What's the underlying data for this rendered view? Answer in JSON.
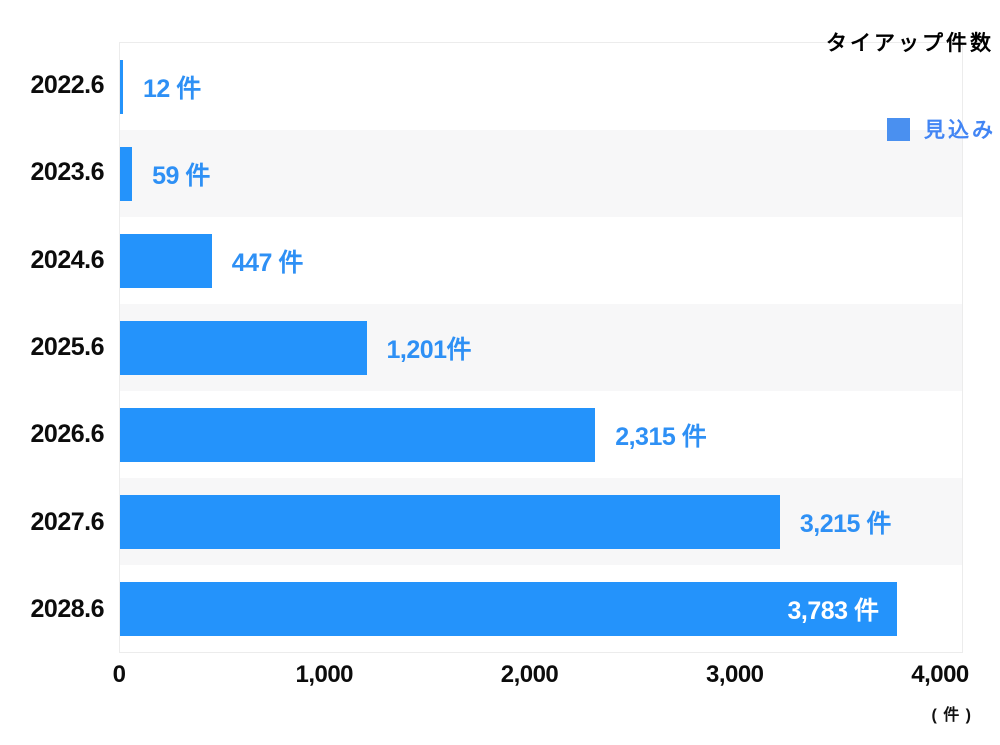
{
  "chart_data": {
    "type": "bar",
    "orientation": "horizontal",
    "title": "タイアップ件数",
    "legend": [
      {
        "label": "見込み",
        "swatch_color": "#4a90f0",
        "text_color": "#4285f4"
      }
    ],
    "legend_position": "top-right",
    "categories": [
      "2022.6",
      "2023.6",
      "2024.6",
      "2025.6",
      "2026.6",
      "2027.6",
      "2028.6"
    ],
    "values": [
      12,
      59,
      447,
      1201,
      2315,
      3215,
      3783
    ],
    "value_labels": [
      "12 件",
      "59 件",
      "447 件",
      "1,201件",
      "2,315 件",
      "3,215 件",
      "3,783 件"
    ],
    "inside_label_indices": [
      6
    ],
    "striped_row_indices": [
      1,
      3,
      5
    ],
    "x_ticks": [
      "0",
      "1,000",
      "2,000",
      "3,000",
      "4,000"
    ],
    "xlim": [
      0,
      4000
    ],
    "x_unit": "( 件 )",
    "grid": false,
    "colors": {
      "bar": "#2493fb",
      "value_label": "#2e90f5",
      "inside_value_label": "#ffffff",
      "row_stripe": "#f7f7f8",
      "axis_text": "#0c0c0c",
      "plot_border": "#ececec"
    }
  }
}
